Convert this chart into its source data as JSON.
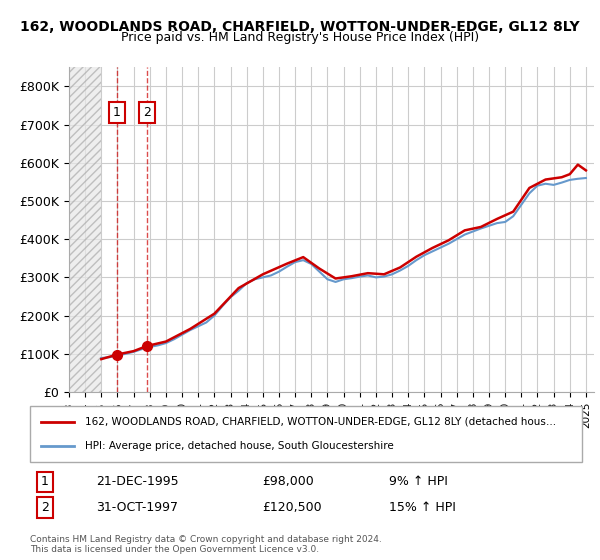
{
  "title": "162, WOODLANDS ROAD, CHARFIELD, WOTTON-UNDER-EDGE, GL12 8LY",
  "subtitle": "Price paid vs. HM Land Registry's House Price Index (HPI)",
  "xlim_start": 1993.0,
  "xlim_end": 2025.5,
  "ylim": [
    0,
    850000
  ],
  "yticks": [
    0,
    100000,
    200000,
    300000,
    400000,
    500000,
    600000,
    700000,
    800000
  ],
  "ytick_labels": [
    "£0",
    "£100K",
    "£200K",
    "£300K",
    "£400K",
    "£500K",
    "£600K",
    "£700K",
    "£800K"
  ],
  "transaction1_x": 1995.97,
  "transaction1_y": 98000,
  "transaction1_label": "1",
  "transaction1_date": "21-DEC-1995",
  "transaction1_price": "£98,000",
  "transaction1_hpi": "9% ↑ HPI",
  "transaction2_x": 1997.83,
  "transaction2_y": 120500,
  "transaction2_label": "2",
  "transaction2_date": "31-OCT-1997",
  "transaction2_price": "£120,500",
  "transaction2_hpi": "15% ↑ HPI",
  "legend_line1": "162, WOODLANDS ROAD, CHARFIELD, WOTTON-UNDER-EDGE, GL12 8LY (detached hous…",
  "legend_line2": "HPI: Average price, detached house, South Gloucestershire",
  "footnote": "Contains HM Land Registry data © Crown copyright and database right 2024.\nThis data is licensed under the Open Government Licence v3.0.",
  "price_line_color": "#cc0000",
  "hpi_line_color": "#6699cc",
  "background_hatch_color": "#cccccc",
  "grid_color": "#cccccc",
  "hatch_region_end": 1995.0
}
